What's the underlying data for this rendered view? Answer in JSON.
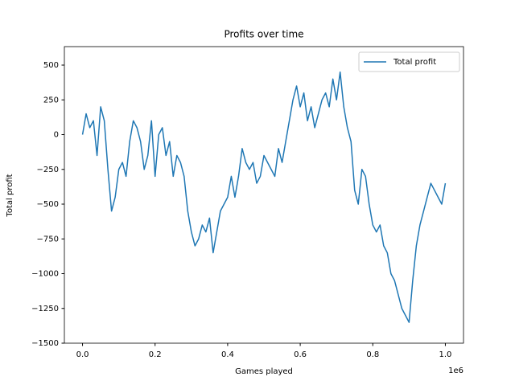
{
  "chart_data": {
    "type": "line",
    "title": "Profits over time",
    "x_label": "Games played",
    "y_label": "Total profit",
    "x_offset_label": "1e6",
    "x": [
      0,
      10000,
      20000,
      30000,
      40000,
      50000,
      60000,
      70000,
      80000,
      90000,
      100000,
      110000,
      120000,
      130000,
      140000,
      150000,
      160000,
      170000,
      180000,
      190000,
      200000,
      210000,
      220000,
      230000,
      240000,
      250000,
      260000,
      270000,
      280000,
      290000,
      300000,
      310000,
      320000,
      330000,
      340000,
      350000,
      360000,
      370000,
      380000,
      390000,
      400000,
      410000,
      420000,
      430000,
      440000,
      450000,
      460000,
      470000,
      480000,
      490000,
      500000,
      510000,
      520000,
      530000,
      540000,
      550000,
      560000,
      570000,
      580000,
      590000,
      600000,
      610000,
      620000,
      630000,
      640000,
      650000,
      660000,
      670000,
      680000,
      690000,
      700000,
      710000,
      720000,
      730000,
      740000,
      750000,
      760000,
      770000,
      780000,
      790000,
      800000,
      810000,
      820000,
      830000,
      840000,
      850000,
      860000,
      870000,
      880000,
      890000,
      900000,
      910000,
      920000,
      930000,
      940000,
      950000,
      960000,
      970000,
      980000,
      990000,
      1000000
    ],
    "series": [
      {
        "name": "Total profit",
        "color": "#1f77b4",
        "values": [
          0,
          150,
          50,
          100,
          -150,
          200,
          100,
          -250,
          -550,
          -450,
          -250,
          -200,
          -300,
          -50,
          100,
          50,
          -50,
          -250,
          -150,
          100,
          -300,
          0,
          50,
          -150,
          -50,
          -300,
          -150,
          -200,
          -300,
          -550,
          -700,
          -800,
          -750,
          -650,
          -700,
          -600,
          -850,
          -700,
          -550,
          -500,
          -450,
          -300,
          -450,
          -300,
          -100,
          -200,
          -250,
          -200,
          -350,
          -300,
          -150,
          -200,
          -250,
          -300,
          -100,
          -200,
          -50,
          100,
          250,
          350,
          200,
          300,
          100,
          200,
          50,
          150,
          250,
          300,
          200,
          400,
          250,
          450,
          200,
          50,
          -50,
          -400,
          -500,
          -250,
          -300,
          -500,
          -650,
          -700,
          -650,
          -800,
          -850,
          -1000,
          -1050,
          -1150,
          -1250,
          -1300,
          -1350,
          -1050,
          -800,
          -650,
          -550,
          -450,
          -350,
          -400,
          -450,
          -500,
          -350
        ]
      }
    ],
    "xlim": [
      -50000,
      1050000
    ],
    "ylim": [
      -1500,
      633
    ],
    "xticks": [
      {
        "value": 0,
        "label": "0.0"
      },
      {
        "value": 200000,
        "label": "0.2"
      },
      {
        "value": 400000,
        "label": "0.4"
      },
      {
        "value": 600000,
        "label": "0.6"
      },
      {
        "value": 800000,
        "label": "0.8"
      },
      {
        "value": 1000000,
        "label": "1.0"
      }
    ],
    "yticks": [
      {
        "value": -1500,
        "label": "−1500"
      },
      {
        "value": -1250,
        "label": "−1250"
      },
      {
        "value": -1000,
        "label": "−1000"
      },
      {
        "value": -750,
        "label": "−750"
      },
      {
        "value": -500,
        "label": "−500"
      },
      {
        "value": -250,
        "label": "−250"
      },
      0,
      250,
      500
    ],
    "legend": "upper right",
    "grid": false
  }
}
